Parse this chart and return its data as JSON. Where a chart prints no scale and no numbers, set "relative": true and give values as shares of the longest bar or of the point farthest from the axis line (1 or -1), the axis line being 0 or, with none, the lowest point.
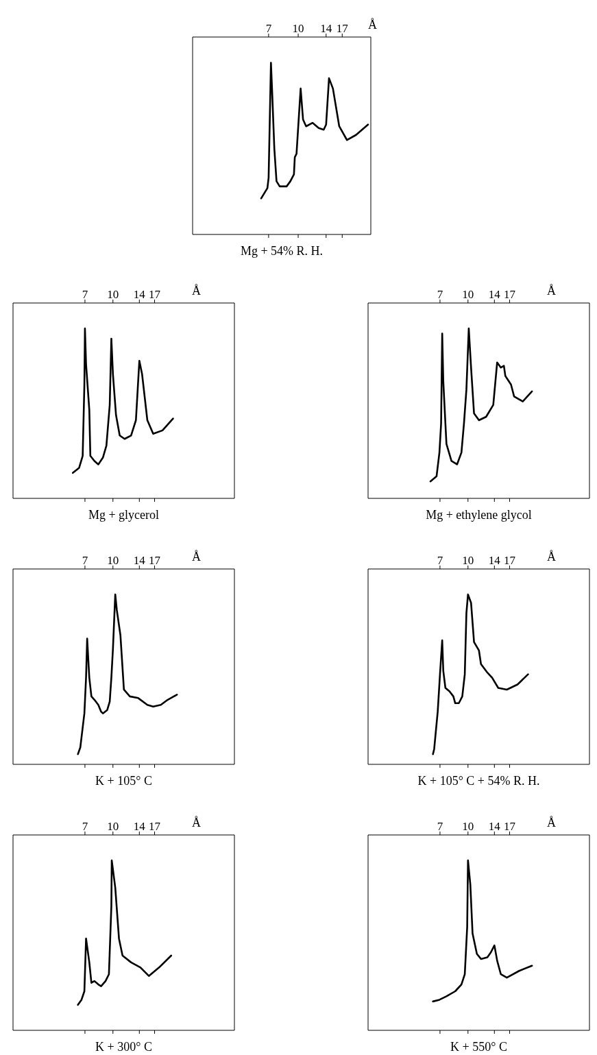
{
  "chart_data": [
    {
      "type": "line",
      "title": "Mg + 54% R. H.",
      "xlabel": "Å",
      "relative": true,
      "log": "x",
      "color": "#000000",
      "xlim": [
        2.8,
        24
      ],
      "xticks": [
        7,
        10,
        14,
        17
      ],
      "x": [
        6.4,
        6.9,
        7.0,
        7.2,
        7.3,
        7.5,
        7.7,
        8.0,
        8.7,
        9.1,
        9.5,
        9.6,
        9.8,
        10.3,
        10.6,
        11.0,
        11.9,
        12.8,
        13.6,
        14.0,
        14.5,
        15.2,
        16.4,
        18.0,
        20.1,
        23.2
      ],
      "values": [
        0.21,
        0.27,
        0.33,
        1,
        0.84,
        0.5,
        0.31,
        0.28,
        0.28,
        0.31,
        0.35,
        0.45,
        0.47,
        0.85,
        0.67,
        0.63,
        0.65,
        0.62,
        0.61,
        0.64,
        0.91,
        0.85,
        0.63,
        0.55,
        0.58,
        0.64
      ]
    },
    {
      "type": "line",
      "title": "Mg + glycerol",
      "xlabel": "Å",
      "relative": true,
      "log": "x",
      "color": "#000000",
      "xlim": [
        2.8,
        47
      ],
      "xticks": [
        7,
        10,
        14,
        17
      ],
      "x": [
        6.0,
        6.5,
        6.8,
        6.95,
        7.0,
        7.1,
        7.4,
        7.5,
        7.9,
        8.3,
        8.8,
        9.2,
        9.6,
        9.8,
        10.0,
        10.4,
        10.9,
        11.6,
        12.6,
        13.4,
        14.0,
        14.5,
        15.5,
        16.7,
        18.8,
        21.5
      ],
      "values": [
        0.15,
        0.18,
        0.25,
        0.67,
        1,
        0.79,
        0.52,
        0.25,
        0.22,
        0.2,
        0.24,
        0.31,
        0.55,
        0.94,
        0.73,
        0.49,
        0.37,
        0.35,
        0.37,
        0.46,
        0.81,
        0.73,
        0.46,
        0.38,
        0.4,
        0.47
      ]
    },
    {
      "type": "line",
      "title": "Mg + ethylene glycol",
      "xlabel": "Å",
      "relative": true,
      "log": "x",
      "color": "#000000",
      "xlim": [
        2.8,
        47
      ],
      "xticks": [
        7,
        10,
        14,
        17
      ],
      "x": [
        6.2,
        6.7,
        6.95,
        7.1,
        7.2,
        7.3,
        7.5,
        7.6,
        8.1,
        8.7,
        9.2,
        9.5,
        9.8,
        10.1,
        10.4,
        10.8,
        11.5,
        12.6,
        13.8,
        14.5,
        15.2,
        15.8,
        16.1,
        17.3,
        18.0,
        20.1,
        22.6
      ],
      "values": [
        0.1,
        0.13,
        0.27,
        0.44,
        0.97,
        0.69,
        0.44,
        0.32,
        0.22,
        0.2,
        0.27,
        0.44,
        0.64,
        1,
        0.77,
        0.5,
        0.46,
        0.48,
        0.55,
        0.8,
        0.77,
        0.78,
        0.72,
        0.67,
        0.6,
        0.57,
        0.63
      ]
    },
    {
      "type": "line",
      "title": "K + 105° C",
      "xlabel": "Å",
      "relative": true,
      "log": "x",
      "color": "#000000",
      "xlim": [
        2.8,
        47
      ],
      "xticks": [
        7,
        10,
        14,
        17
      ],
      "x": [
        6.4,
        6.6,
        6.95,
        7.1,
        7.2,
        7.4,
        7.6,
        7.9,
        8.3,
        8.6,
        8.8,
        9.3,
        9.6,
        9.8,
        10.0,
        10.3,
        10.5,
        11.0,
        11.5,
        12.4,
        13.8,
        15.5,
        16.7,
        18.4,
        20.1,
        22.6
      ],
      "values": [
        0.06,
        0.1,
        0.3,
        0.51,
        0.74,
        0.51,
        0.4,
        0.38,
        0.35,
        0.31,
        0.3,
        0.32,
        0.37,
        0.51,
        0.68,
        1,
        0.91,
        0.76,
        0.44,
        0.4,
        0.39,
        0.35,
        0.34,
        0.35,
        0.38,
        0.41
      ]
    },
    {
      "type": "line",
      "title": "K + 105° C + 54% R. H.",
      "xlabel": "Å",
      "relative": true,
      "log": "x",
      "color": "#000000",
      "xlim": [
        2.8,
        47
      ],
      "xticks": [
        7,
        10,
        14,
        17
      ],
      "x": [
        6.4,
        6.5,
        6.8,
        7.0,
        7.2,
        7.3,
        7.5,
        7.9,
        8.3,
        8.5,
        8.9,
        9.3,
        9.6,
        9.8,
        10.0,
        10.4,
        10.8,
        11.5,
        11.8,
        12.8,
        13.6,
        14.7,
        16.4,
        18.8,
        21.5
      ],
      "values": [
        0.06,
        0.09,
        0.31,
        0.53,
        0.73,
        0.55,
        0.45,
        0.43,
        0.4,
        0.36,
        0.36,
        0.4,
        0.53,
        0.89,
        1,
        0.95,
        0.72,
        0.67,
        0.59,
        0.54,
        0.51,
        0.45,
        0.44,
        0.47,
        0.53
      ]
    },
    {
      "type": "line",
      "title": "K + 300° C",
      "xlabel": "Å",
      "relative": true,
      "log": "x",
      "color": "#000000",
      "xlim": [
        2.8,
        47
      ],
      "xticks": [
        7,
        10,
        14,
        17
      ],
      "x": [
        6.4,
        6.7,
        6.95,
        7.1,
        7.4,
        7.6,
        7.9,
        8.3,
        8.6,
        9.1,
        9.5,
        9.8,
        9.85,
        10.3,
        10.8,
        11.3,
        12.6,
        14.2,
        15.8,
        18.0,
        21.0
      ],
      "values": [
        0.15,
        0.18,
        0.23,
        0.54,
        0.4,
        0.28,
        0.29,
        0.27,
        0.26,
        0.29,
        0.33,
        0.73,
        1,
        0.84,
        0.54,
        0.44,
        0.4,
        0.37,
        0.32,
        0.37,
        0.44
      ]
    },
    {
      "type": "line",
      "title": "K + 550° C",
      "xlabel": "Å",
      "relative": true,
      "log": "x",
      "color": "#000000",
      "xlim": [
        2.8,
        47
      ],
      "xticks": [
        7,
        10,
        14,
        17
      ],
      "x": [
        6.4,
        6.95,
        7.6,
        8.5,
        9.2,
        9.6,
        9.9,
        10.0,
        10.3,
        10.6,
        11.2,
        11.8,
        12.8,
        13.4,
        14.0,
        14.5,
        15.2,
        16.4,
        19.2,
        22.6
      ],
      "values": [
        0.17,
        0.18,
        0.2,
        0.23,
        0.27,
        0.33,
        0.61,
        1,
        0.86,
        0.57,
        0.45,
        0.42,
        0.43,
        0.46,
        0.5,
        0.41,
        0.33,
        0.31,
        0.35,
        0.38
      ]
    }
  ]
}
